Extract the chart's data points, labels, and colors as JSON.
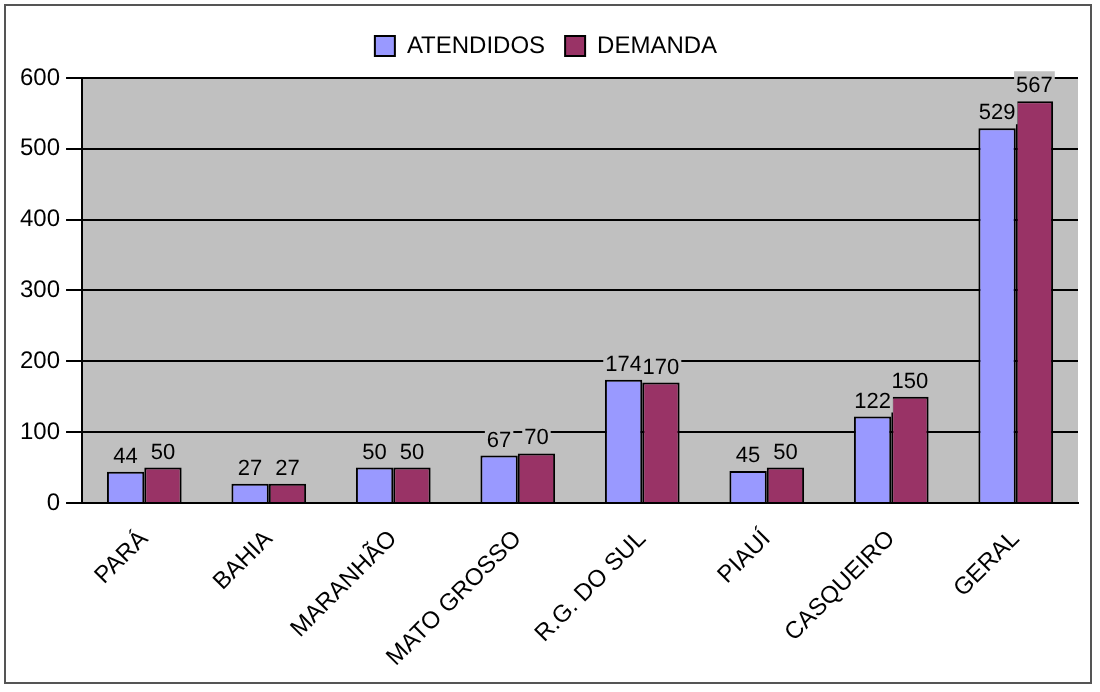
{
  "chart_data": {
    "type": "bar",
    "categories": [
      "PARÁ",
      "BAHIA",
      "MARANHÃO",
      "MATO GROSSO",
      "R.G. DO SUL",
      "PIAUÍ",
      "CASQUEIRO",
      "GERAL"
    ],
    "series": [
      {
        "name": "ATENDIDOS",
        "color": "#9999ff",
        "values": [
          44,
          27,
          50,
          67,
          174,
          45,
          122,
          529
        ]
      },
      {
        "name": "DEMANDA",
        "color": "#993366",
        "values": [
          50,
          27,
          50,
          70,
          170,
          50,
          150,
          567
        ]
      }
    ],
    "ylim": [
      0,
      600
    ],
    "yticks": [
      0,
      100,
      200,
      300,
      400,
      500,
      600
    ],
    "grid": "y",
    "legend": "top",
    "data_labels": true
  }
}
